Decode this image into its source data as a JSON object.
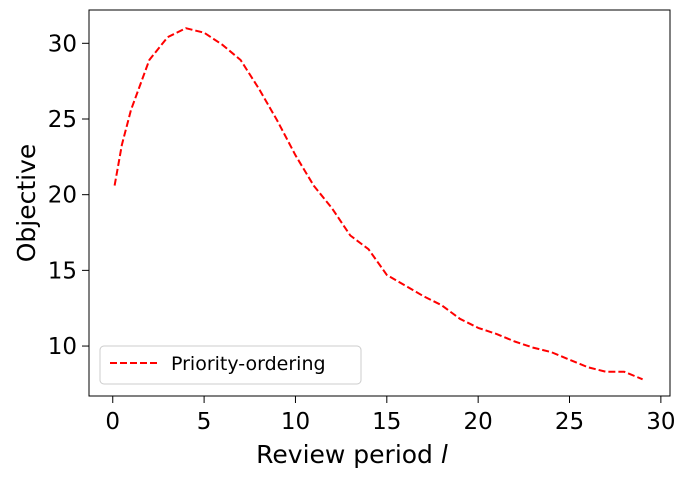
{
  "chart_data": {
    "type": "line",
    "xlabel": "Review period",
    "xlabel_var": "l",
    "ylabel": "Objective",
    "xlim": [
      -1.3,
      30.5
    ],
    "ylim": [
      6.7,
      32.2
    ],
    "xticks": [
      0,
      5,
      10,
      15,
      20,
      25,
      30
    ],
    "yticks": [
      10,
      15,
      20,
      25,
      30
    ],
    "grid": false,
    "legend_position": "lower-left",
    "series": [
      {
        "name": "Priority-ordering",
        "color": "#ff0000",
        "style": "dashed",
        "x": [
          0.1,
          0.5,
          1,
          2,
          3,
          4,
          5,
          6,
          7,
          8,
          9,
          10,
          11,
          12,
          13,
          14,
          15,
          16,
          17,
          18,
          19,
          20,
          21,
          22,
          23,
          24,
          25,
          26,
          27,
          28,
          29
        ],
        "y": [
          20.6,
          23.3,
          25.6,
          28.9,
          30.4,
          31.0,
          30.7,
          29.9,
          28.9,
          27.0,
          24.9,
          22.6,
          20.6,
          19.1,
          17.3,
          16.4,
          14.7,
          14.0,
          13.3,
          12.7,
          11.8,
          11.2,
          10.8,
          10.3,
          9.9,
          9.6,
          9.1,
          8.6,
          8.3,
          8.3,
          7.8
        ]
      }
    ]
  }
}
